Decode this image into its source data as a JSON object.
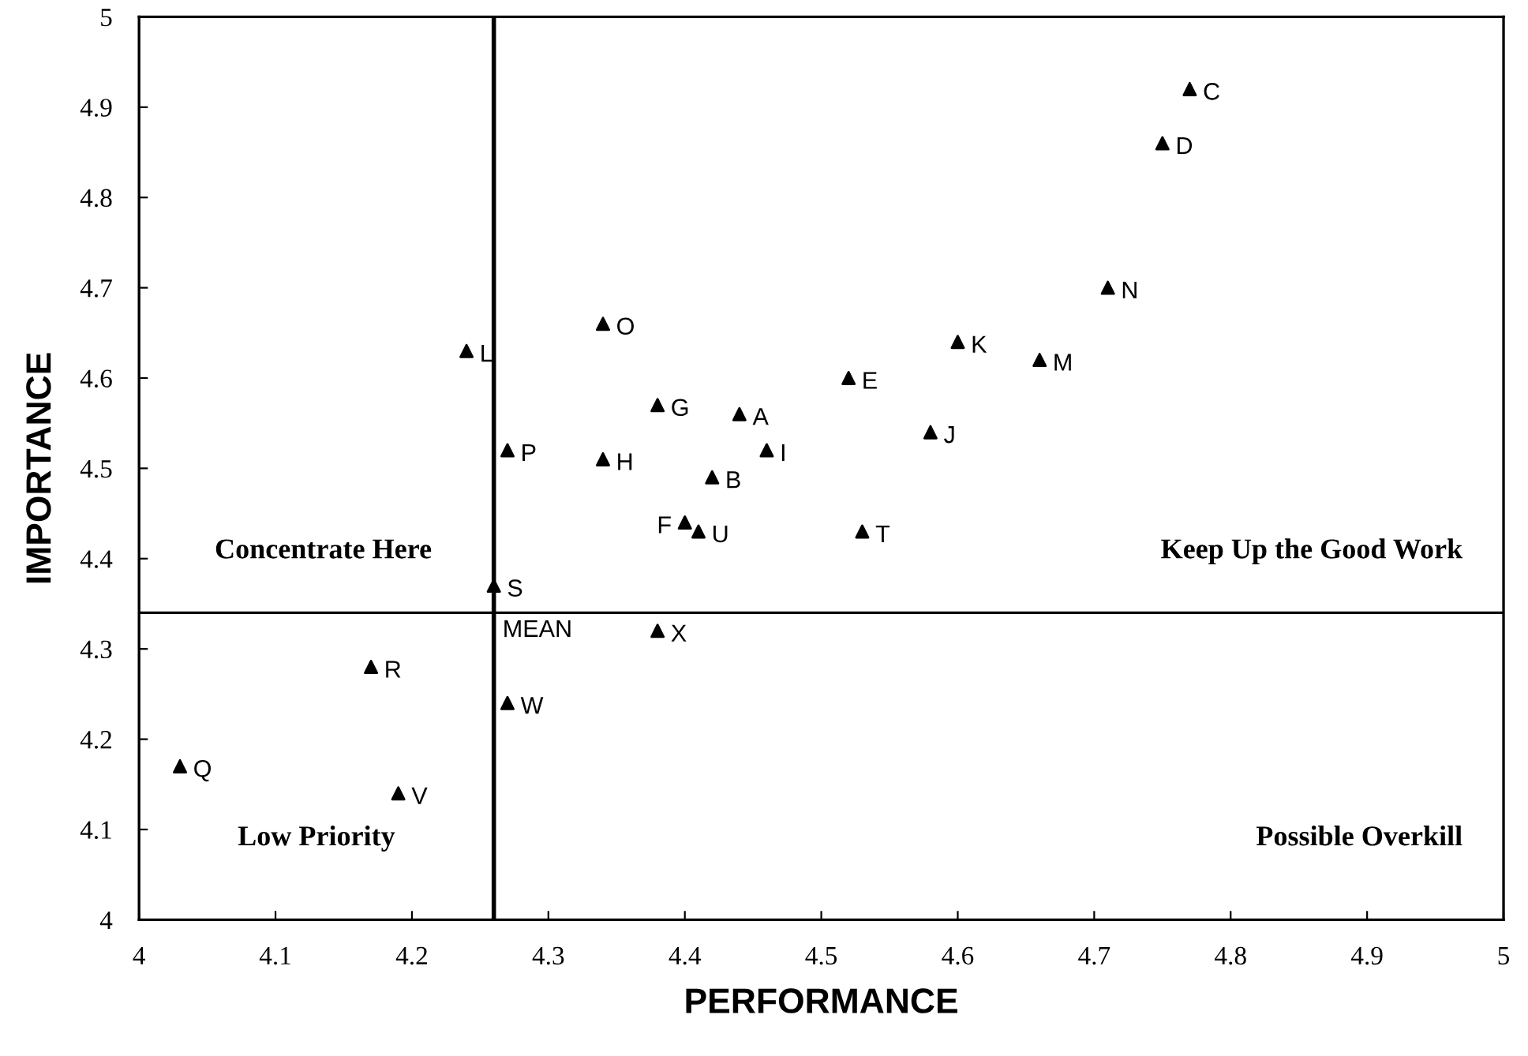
{
  "chart_data": {
    "type": "scatter",
    "xlabel": "PERFORMANCE",
    "ylabel": "IMPORTANCE",
    "series": [
      {
        "color": "#000000",
        "x": [
          4.44,
          4.42,
          4.77,
          4.75,
          4.52,
          4.4,
          4.38,
          4.34,
          4.46,
          4.58,
          4.6,
          4.24,
          4.66,
          4.71,
          4.34,
          4.27,
          4.03,
          4.17,
          4.26,
          4.53,
          4.41,
          4.19,
          4.27,
          4.38
        ],
        "values": [
          4.56,
          4.49,
          4.92,
          4.86,
          4.6,
          4.44,
          4.57,
          4.51,
          4.52,
          4.54,
          4.64,
          4.63,
          4.62,
          4.7,
          4.66,
          4.52,
          4.17,
          4.28,
          4.37,
          4.43,
          4.43,
          4.14,
          4.24,
          4.32
        ]
      }
    ],
    "annotations": [
      "Concentrate Here",
      "Keep Up the Good Work",
      "Low Priority",
      "Possible Overkill",
      {
        "text": "A",
        "x": 4.44,
        "y": 4.56
      },
      {
        "text": "B",
        "x": 4.42,
        "y": 4.49
      },
      {
        "text": "C",
        "x": 4.77,
        "y": 4.92
      },
      {
        "text": "D",
        "x": 4.75,
        "y": 4.86
      },
      {
        "text": "E",
        "x": 4.52,
        "y": 4.6
      },
      {
        "text": "F",
        "x": 4.4,
        "y": 4.44
      },
      {
        "text": "G",
        "x": 4.38,
        "y": 4.57
      },
      {
        "text": "H",
        "x": 4.34,
        "y": 4.51
      },
      {
        "text": "I",
        "x": 4.46,
        "y": 4.52
      },
      {
        "text": "J",
        "x": 4.58,
        "y": 4.54
      },
      {
        "text": "K",
        "x": 4.6,
        "y": 4.64
      },
      {
        "text": "L",
        "x": 4.24,
        "y": 4.63
      },
      {
        "text": "M",
        "x": 4.66,
        "y": 4.62
      },
      {
        "text": "N",
        "x": 4.71,
        "y": 4.7
      },
      {
        "text": "O",
        "x": 4.34,
        "y": 4.66
      },
      {
        "text": "P",
        "x": 4.27,
        "y": 4.52
      },
      {
        "text": "Q",
        "x": 4.03,
        "y": 4.17
      },
      {
        "text": "R",
        "x": 4.17,
        "y": 4.28
      },
      {
        "text": "S",
        "x": 4.26,
        "y": 4.37
      },
      {
        "text": "T",
        "x": 4.53,
        "y": 4.43
      },
      {
        "text": "U",
        "x": 4.41,
        "y": 4.43
      },
      {
        "text": "V",
        "x": 4.19,
        "y": 4.14
      },
      {
        "text": "W",
        "x": 4.27,
        "y": 4.24
      },
      {
        "text": "X",
        "x": 4.38,
        "y": 4.32
      }
    ],
    "ref_lines": [
      {
        "axis": "x",
        "value": 4.26,
        "color": "#000000"
      },
      {
        "axis": "y",
        "value": 4.34,
        "label": "MEAN",
        "color": "#000000"
      }
    ],
    "xlim": [
      4,
      5
    ],
    "ylim": [
      4,
      5
    ],
    "xticks": [
      4,
      4.1,
      4.2,
      4.3,
      4.4,
      4.5,
      4.6,
      4.7,
      4.8,
      4.9,
      5
    ],
    "yticks": [
      4,
      4.1,
      4.2,
      4.3,
      4.4,
      4.5,
      4.6,
      4.7,
      4.8,
      4.9,
      5
    ],
    "marker": "triangle",
    "grid": false,
    "legend": false
  }
}
